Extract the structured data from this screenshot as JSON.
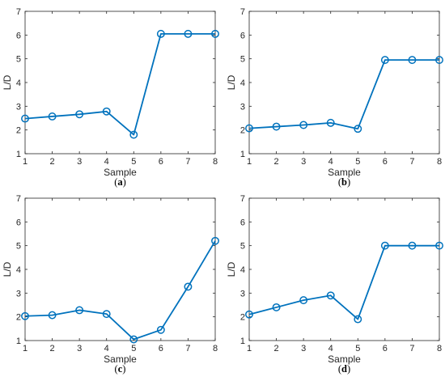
{
  "chart_data": [
    {
      "type": "line",
      "panel_label": "(a)",
      "panel_letter": "a",
      "xlabel": "Sample",
      "ylabel": "L/D",
      "x": [
        1,
        2,
        3,
        4,
        5,
        6,
        7,
        8
      ],
      "y": [
        2.48,
        2.57,
        2.66,
        2.78,
        1.8,
        6.05,
        6.05,
        6.05
      ],
      "xlim": [
        1,
        8
      ],
      "ylim": [
        1,
        7
      ],
      "xticks": [
        1,
        2,
        3,
        4,
        5,
        6,
        7,
        8
      ],
      "yticks": [
        1,
        2,
        3,
        4,
        5,
        6,
        7
      ],
      "marker": "circle",
      "grid": false,
      "line_color": "#0072BD"
    },
    {
      "type": "line",
      "panel_label": "(b)",
      "panel_letter": "b",
      "xlabel": "Sample",
      "ylabel": "L/D",
      "x": [
        1,
        2,
        3,
        4,
        5,
        6,
        7,
        8
      ],
      "y": [
        2.07,
        2.14,
        2.21,
        2.3,
        2.05,
        4.95,
        4.95,
        4.95
      ],
      "xlim": [
        1,
        8
      ],
      "ylim": [
        1,
        7
      ],
      "xticks": [
        1,
        2,
        3,
        4,
        5,
        6,
        7,
        8
      ],
      "yticks": [
        1,
        2,
        3,
        4,
        5,
        6,
        7
      ],
      "marker": "circle",
      "grid": false,
      "line_color": "#0072BD"
    },
    {
      "type": "line",
      "panel_label": "(c)",
      "panel_letter": "c",
      "xlabel": "Sample",
      "ylabel": "L/D",
      "x": [
        1,
        2,
        3,
        4,
        5,
        6,
        7,
        8
      ],
      "y": [
        2.03,
        2.07,
        2.28,
        2.12,
        1.05,
        1.45,
        3.27,
        5.2
      ],
      "xlim": [
        1,
        8
      ],
      "ylim": [
        1,
        7
      ],
      "xticks": [
        1,
        2,
        3,
        4,
        5,
        6,
        7,
        8
      ],
      "yticks": [
        1,
        2,
        3,
        4,
        5,
        6,
        7
      ],
      "marker": "circle",
      "grid": false,
      "line_color": "#0072BD"
    },
    {
      "type": "line",
      "panel_label": "(d)",
      "panel_letter": "d",
      "xlabel": "Sample",
      "ylabel": "L/D",
      "x": [
        1,
        2,
        3,
        4,
        5,
        6,
        7,
        8
      ],
      "y": [
        2.1,
        2.4,
        2.7,
        2.9,
        1.9,
        5.0,
        5.0,
        5.0
      ],
      "xlim": [
        1,
        8
      ],
      "ylim": [
        1,
        7
      ],
      "xticks": [
        1,
        2,
        3,
        4,
        5,
        6,
        7,
        8
      ],
      "yticks": [
        1,
        2,
        3,
        4,
        5,
        6,
        7
      ],
      "marker": "circle",
      "grid": false,
      "line_color": "#0072BD"
    }
  ]
}
